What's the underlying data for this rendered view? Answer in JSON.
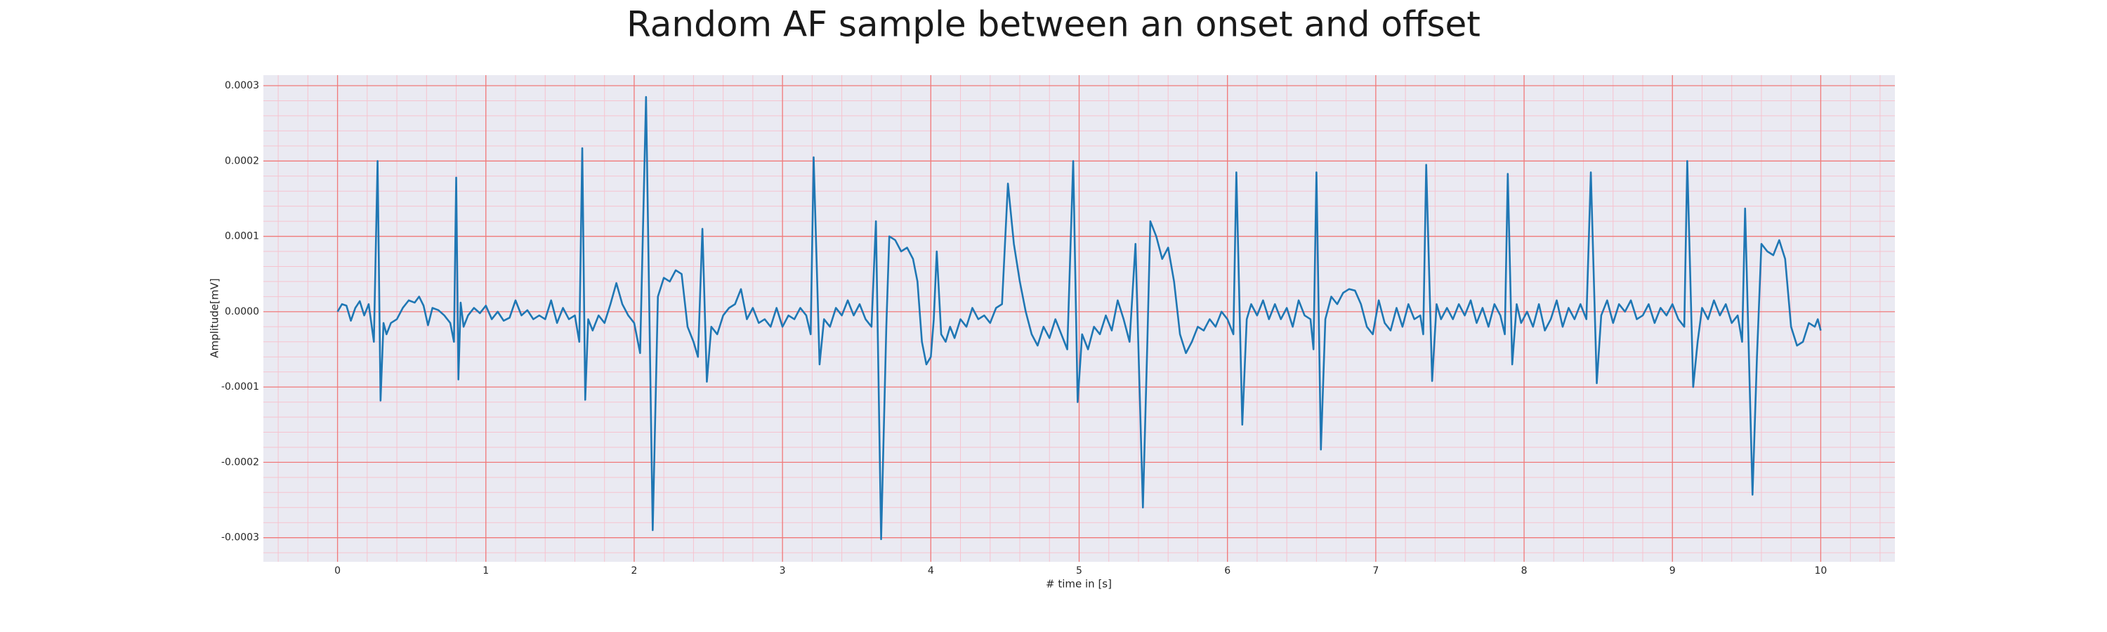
{
  "chart_data": {
    "type": "line",
    "title": "Random AF sample between an onset and offset",
    "xlabel": "# time in [s]",
    "ylabel": "Amplitude[mV]",
    "color": "#1f77b4",
    "background": "#eaeaf2",
    "grid": true,
    "grid_color": "#f07a7a",
    "minor_grid": true,
    "minor_grid_color": "#f6c3cf",
    "xlim": [
      -0.5,
      10.5
    ],
    "ylim": [
      -0.000332,
      0.000314
    ],
    "xticks": [
      0,
      1,
      2,
      3,
      4,
      5,
      6,
      7,
      8,
      9,
      10
    ],
    "yticks": [
      {
        "value": -0.0003,
        "label": "-0.0003"
      },
      {
        "value": -0.0002,
        "label": "-0.0002"
      },
      {
        "value": -0.0001,
        "label": "-0.0001"
      },
      {
        "value": 0,
        "label": "0.0000"
      },
      {
        "value": 0.0001,
        "label": "0.0001"
      },
      {
        "value": 0.0002,
        "label": "0.0002"
      },
      {
        "value": 0.0003,
        "label": "0.0003"
      }
    ],
    "x": [
      0,
      0.03,
      0.06,
      0.09,
      0.12,
      0.15,
      0.18,
      0.21,
      0.245,
      0.27,
      0.29,
      0.31,
      0.33,
      0.36,
      0.4,
      0.44,
      0.48,
      0.52,
      0.55,
      0.58,
      0.61,
      0.64,
      0.68,
      0.72,
      0.76,
      0.785,
      0.8,
      0.815,
      0.83,
      0.85,
      0.88,
      0.92,
      0.96,
      1,
      1.04,
      1.08,
      1.12,
      1.16,
      1.2,
      1.24,
      1.28,
      1.32,
      1.36,
      1.4,
      1.44,
      1.48,
      1.52,
      1.56,
      1.6,
      1.63,
      1.65,
      1.67,
      1.69,
      1.72,
      1.76,
      1.8,
      1.84,
      1.88,
      1.92,
      1.96,
      2,
      2.04,
      2.08,
      2.125,
      2.16,
      2.2,
      2.24,
      2.28,
      2.32,
      2.36,
      2.4,
      2.43,
      2.46,
      2.49,
      2.52,
      2.56,
      2.6,
      2.64,
      2.68,
      2.72,
      2.76,
      2.8,
      2.84,
      2.88,
      2.92,
      2.96,
      3,
      3.04,
      3.08,
      3.12,
      3.16,
      3.19,
      3.21,
      3.25,
      3.28,
      3.32,
      3.36,
      3.4,
      3.44,
      3.48,
      3.52,
      3.56,
      3.6,
      3.63,
      3.665,
      3.7,
      3.72,
      3.76,
      3.8,
      3.84,
      3.88,
      3.91,
      3.94,
      3.97,
      4,
      4.02,
      4.04,
      4.07,
      4.1,
      4.13,
      4.16,
      4.2,
      4.24,
      4.28,
      4.32,
      4.36,
      4.4,
      4.44,
      4.48,
      4.52,
      4.56,
      4.6,
      4.64,
      4.68,
      4.72,
      4.76,
      4.8,
      4.84,
      4.88,
      4.92,
      4.96,
      4.99,
      5.02,
      5.06,
      5.1,
      5.14,
      5.18,
      5.22,
      5.26,
      5.3,
      5.34,
      5.38,
      5.43,
      5.46,
      5.48,
      5.52,
      5.56,
      5.6,
      5.64,
      5.68,
      5.72,
      5.76,
      5.8,
      5.84,
      5.88,
      5.92,
      5.96,
      6,
      6.04,
      6.06,
      6.1,
      6.13,
      6.16,
      6.2,
      6.24,
      6.28,
      6.32,
      6.36,
      6.4,
      6.44,
      6.48,
      6.52,
      6.56,
      6.58,
      6.6,
      6.63,
      6.66,
      6.7,
      6.74,
      6.78,
      6.82,
      6.86,
      6.9,
      6.94,
      6.98,
      7.02,
      7.06,
      7.1,
      7.14,
      7.18,
      7.22,
      7.26,
      7.3,
      7.32,
      7.34,
      7.38,
      7.41,
      7.44,
      7.48,
      7.52,
      7.56,
      7.6,
      7.64,
      7.68,
      7.72,
      7.76,
      7.8,
      7.84,
      7.87,
      7.89,
      7.92,
      7.95,
      7.98,
      8.02,
      8.06,
      8.1,
      8.14,
      8.18,
      8.22,
      8.26,
      8.3,
      8.34,
      8.38,
      8.42,
      8.45,
      8.49,
      8.52,
      8.56,
      8.6,
      8.64,
      8.68,
      8.72,
      8.76,
      8.8,
      8.84,
      8.88,
      8.92,
      8.96,
      9,
      9.04,
      9.08,
      9.1,
      9.14,
      9.17,
      9.2,
      9.24,
      9.28,
      9.32,
      9.36,
      9.4,
      9.44,
      9.47,
      9.49,
      9.54,
      9.57,
      9.6,
      9.64,
      9.68,
      9.72,
      9.76,
      9.8,
      9.84,
      9.88,
      9.92,
      9.96,
      9.98,
      10
    ],
    "values": [
      0,
      1e-05,
      8e-06,
      -1.2e-05,
      5e-06,
      1.4e-05,
      -5e-06,
      1e-05,
      -4e-05,
      0.0002,
      -0.000118,
      -1.5e-05,
      -3e-05,
      -1.5e-05,
      -1e-05,
      5e-06,
      1.5e-05,
      1.2e-05,
      2e-05,
      8e-06,
      -1.8e-05,
      5e-06,
      2e-06,
      -5e-06,
      -1.5e-05,
      -4e-05,
      0.000178,
      -9e-05,
      1.2e-05,
      -2e-05,
      -5e-06,
      5e-06,
      -2e-06,
      8e-06,
      -1e-05,
      0,
      -1.2e-05,
      -8e-06,
      1.5e-05,
      -5e-06,
      2e-06,
      -1e-05,
      -5e-06,
      -1e-05,
      1.5e-05,
      -1.5e-05,
      5e-06,
      -1e-05,
      -5e-06,
      -4e-05,
      0.000217,
      -0.000117,
      -1e-05,
      -2.5e-05,
      -5e-06,
      -1.5e-05,
      1e-05,
      3.8e-05,
      1e-05,
      -5e-06,
      -1.5e-05,
      -5.5e-05,
      0.000285,
      -0.00029,
      2e-05,
      4.5e-05,
      4e-05,
      5.5e-05,
      5e-05,
      -2e-05,
      -4e-05,
      -6e-05,
      0.00011,
      -9.3e-05,
      -2e-05,
      -3e-05,
      -5e-06,
      5e-06,
      1e-05,
      3e-05,
      -1e-05,
      5e-06,
      -1.5e-05,
      -1e-05,
      -2e-05,
      5e-06,
      -2e-05,
      -5e-06,
      -1e-05,
      5e-06,
      -5e-06,
      -3e-05,
      0.000205,
      -7e-05,
      -1e-05,
      -2e-05,
      5e-06,
      -5e-06,
      1.5e-05,
      -5e-06,
      1e-05,
      -1e-05,
      -2e-05,
      0.00012,
      -0.000302,
      -2e-05,
      0.0001,
      9.5e-05,
      8e-05,
      8.5e-05,
      7e-05,
      4e-05,
      -4e-05,
      -7e-05,
      -6e-05,
      -1e-05,
      8e-05,
      -3e-05,
      -4e-05,
      -2e-05,
      -3.5e-05,
      -1e-05,
      -2e-05,
      5e-06,
      -1e-05,
      -5e-06,
      -1.5e-05,
      5e-06,
      1e-05,
      0.00017,
      9e-05,
      4e-05,
      0,
      -3e-05,
      -4.5e-05,
      -2e-05,
      -3.5e-05,
      -1e-05,
      -3e-05,
      -5e-05,
      0.0002,
      -0.00012,
      -3e-05,
      -5e-05,
      -2e-05,
      -3e-05,
      -5e-06,
      -2.5e-05,
      1.5e-05,
      -1e-05,
      -4e-05,
      9e-05,
      -0.00026,
      -4e-05,
      0.00012,
      0.0001,
      7e-05,
      8.5e-05,
      4e-05,
      -3e-05,
      -5.5e-05,
      -4e-05,
      -2e-05,
      -2.5e-05,
      -1e-05,
      -2e-05,
      0,
      -1e-05,
      -3e-05,
      0.000185,
      -0.00015,
      -1e-05,
      1e-05,
      -5e-06,
      1.5e-05,
      -1e-05,
      1e-05,
      -1e-05,
      5e-06,
      -2e-05,
      1.5e-05,
      -5e-06,
      -1e-05,
      -5e-05,
      0.000185,
      -0.000183,
      -1e-05,
      2e-05,
      1e-05,
      2.5e-05,
      3e-05,
      2.8e-05,
      1e-05,
      -2e-05,
      -3e-05,
      1.5e-05,
      -1.5e-05,
      -2.5e-05,
      5e-06,
      -2e-05,
      1e-05,
      -1e-05,
      -5e-06,
      -3e-05,
      0.000195,
      -9.2e-05,
      1e-05,
      -1e-05,
      5e-06,
      -1e-05,
      1e-05,
      -5e-06,
      1.5e-05,
      -1.5e-05,
      5e-06,
      -2e-05,
      1e-05,
      -5e-06,
      -3e-05,
      0.000183,
      -7e-05,
      1e-05,
      -1.5e-05,
      0,
      -2e-05,
      1e-05,
      -2.5e-05,
      -1e-05,
      1.5e-05,
      -2e-05,
      5e-06,
      -1e-05,
      1e-05,
      -1e-05,
      0.000185,
      -9.5e-05,
      -5e-06,
      1.5e-05,
      -1.5e-05,
      1e-05,
      0,
      1.5e-05,
      -1e-05,
      -5e-06,
      1e-05,
      -1.5e-05,
      5e-06,
      -5e-06,
      1e-05,
      -1e-05,
      -2e-05,
      0.0002,
      -0.0001,
      -4e-05,
      5e-06,
      -1e-05,
      1.5e-05,
      -5e-06,
      1e-05,
      -1.5e-05,
      -5e-06,
      -4e-05,
      0.000137,
      -0.000243,
      -6e-05,
      9e-05,
      8e-05,
      7.5e-05,
      9.5e-05,
      7e-05,
      -2e-05,
      -4.5e-05,
      -4e-05,
      -1.5e-05,
      -2e-05,
      -1e-05,
      -2.5e-05
    ]
  }
}
